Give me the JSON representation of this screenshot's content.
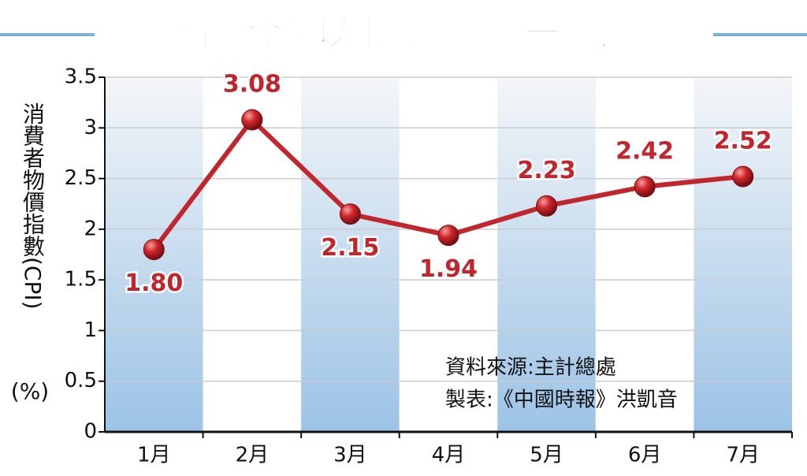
{
  "chart_data": {
    "type": "line",
    "title": "台灣今年以來物價漲幅一覽表",
    "y_label": "消費者物價指數(CPI)",
    "y_unit": "(%)",
    "categories": [
      "1月",
      "2月",
      "3月",
      "4月",
      "5月",
      "6月",
      "7月"
    ],
    "series": [
      {
        "name": "CPI",
        "color": "#c0262c",
        "values": [
          1.8,
          3.08,
          2.15,
          1.94,
          2.23,
          2.42,
          2.52
        ],
        "value_labels": [
          "1.80",
          "3.08",
          "2.15",
          "1.94",
          "2.23",
          "2.42",
          "2.52"
        ]
      }
    ],
    "ylim": [
      0,
      3.5
    ],
    "yticks": [
      0,
      0.5,
      1,
      1.5,
      2,
      2.5,
      3,
      3.5
    ],
    "grid": true,
    "annotations": [
      "資料來源:主計總處",
      "製表:《中國時報》洪凱音"
    ]
  }
}
